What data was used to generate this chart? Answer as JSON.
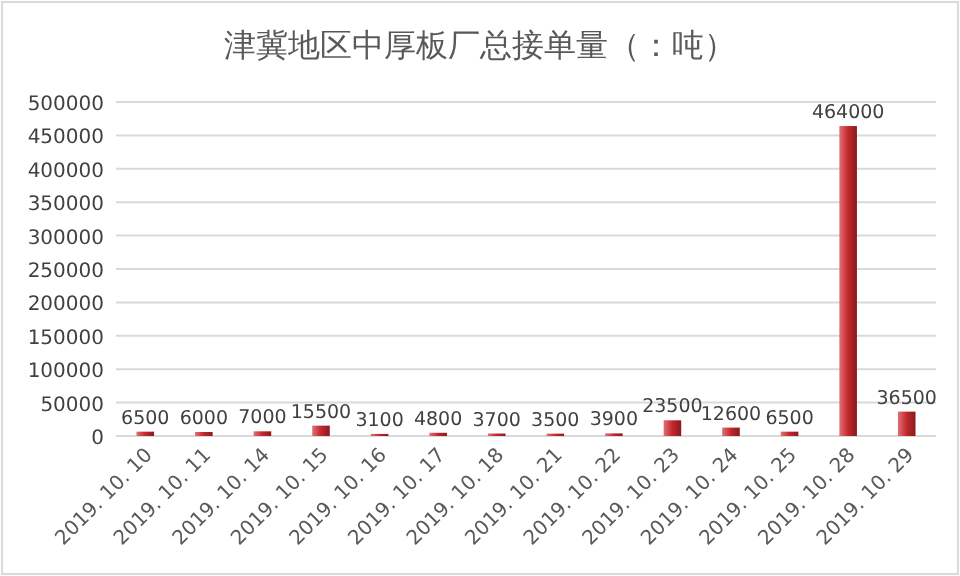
{
  "chart_data": {
    "type": "bar",
    "title": "津冀地区中厚板厂总接单量（：吨）",
    "categories": [
      "2019. 10. 10",
      "2019. 10. 11",
      "2019. 10. 14",
      "2019. 10. 15",
      "2019. 10. 16",
      "2019. 10. 17",
      "2019. 10. 18",
      "2019. 10. 21",
      "2019. 10. 22",
      "2019. 10. 23",
      "2019. 10. 24",
      "2019. 10. 25",
      "2019. 10. 28",
      "2019. 10. 29"
    ],
    "values": [
      6500,
      6000,
      7000,
      15500,
      3100,
      4800,
      3700,
      3500,
      3900,
      23500,
      12600,
      6500,
      464000,
      36500
    ],
    "color": "#c0282d",
    "ylim": [
      0,
      500000
    ],
    "yticks": [
      0,
      50000,
      100000,
      150000,
      200000,
      250000,
      300000,
      350000,
      400000,
      450000,
      500000
    ],
    "grid": "y",
    "data_labels": true
  }
}
